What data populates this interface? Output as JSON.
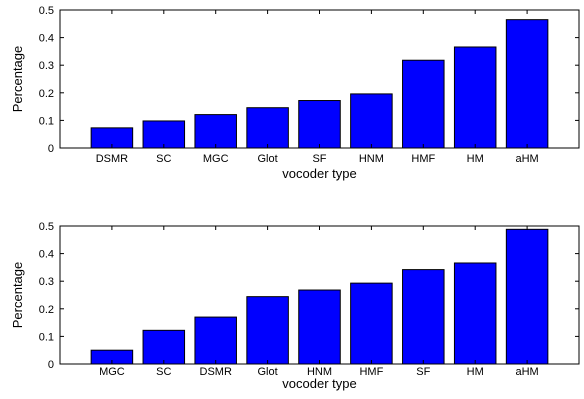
{
  "chart_data": [
    {
      "type": "bar",
      "categories": [
        "DSMR",
        "SC",
        "MGC",
        "Glot",
        "SF",
        "HNM",
        "HMF",
        "HM",
        "aHM"
      ],
      "values": [
        0.073,
        0.098,
        0.121,
        0.146,
        0.172,
        0.196,
        0.318,
        0.366,
        0.465
      ],
      "title": "",
      "xlabel": "vocoder type",
      "ylabel": "Percentage",
      "ylim": [
        0,
        0.5
      ],
      "yticks": [
        0,
        0.1,
        0.2,
        0.3,
        0.4,
        0.5
      ],
      "ytick_labels": [
        "0",
        "0.1",
        "0.2",
        "0.3",
        "0.4",
        "0.5"
      ],
      "bar_color": "#0000ff",
      "grid": false,
      "legend": "none"
    },
    {
      "type": "bar",
      "categories": [
        "MGC",
        "SC",
        "DSMR",
        "Glot",
        "HNM",
        "HMF",
        "SF",
        "HM",
        "aHM"
      ],
      "values": [
        0.05,
        0.122,
        0.17,
        0.244,
        0.268,
        0.293,
        0.342,
        0.366,
        0.488
      ],
      "title": "",
      "xlabel": "vocoder type",
      "ylabel": "Percentage",
      "ylim": [
        0,
        0.5
      ],
      "yticks": [
        0,
        0.1,
        0.2,
        0.3,
        0.4,
        0.5
      ],
      "ytick_labels": [
        "0",
        "0.1",
        "0.2",
        "0.3",
        "0.4",
        "0.5"
      ],
      "bar_color": "#0000ff",
      "grid": false,
      "legend": "none"
    }
  ]
}
